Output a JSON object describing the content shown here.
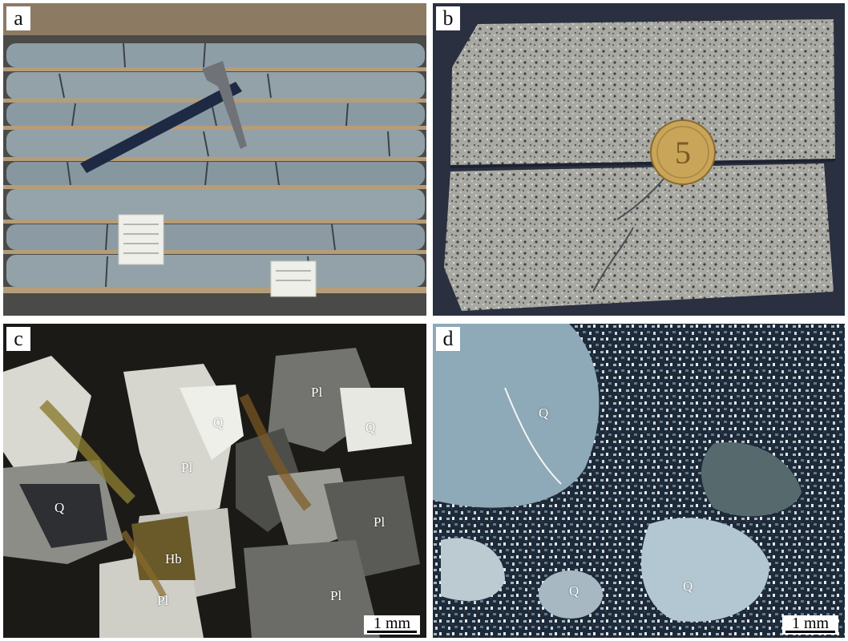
{
  "panels": {
    "a": {
      "label": "a"
    },
    "b": {
      "label": "b"
    },
    "c": {
      "label": "c",
      "minerals": {
        "pl_1": "Pl",
        "q_1": "Q",
        "q_2": "Q",
        "pl_2": "Pl",
        "q_3": "Q",
        "pl_3": "Pl",
        "hb": "Hb",
        "pl_4": "Pl",
        "pl_5": "Pl"
      },
      "scale": "1 mm"
    },
    "d": {
      "label": "d",
      "minerals": {
        "q_1": "Q",
        "q_2": "Q",
        "q_3": "Q"
      },
      "scale": "1 mm"
    }
  },
  "coin": {
    "numeral": "5"
  }
}
